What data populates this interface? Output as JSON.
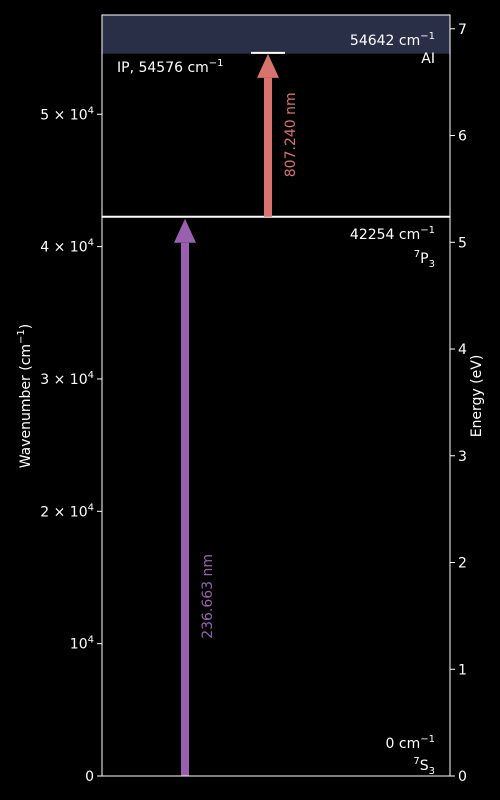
{
  "chart_data": {
    "type": "energy-level-diagram",
    "left_axis": {
      "label_main": "Wavenumber (cm",
      "label_sup": "−1",
      "label_end": ")",
      "range": [
        0,
        57500
      ],
      "ticks": [
        {
          "value": 0,
          "base": "0",
          "exp": ""
        },
        {
          "value": 10000,
          "base": "10",
          "exp": "4"
        },
        {
          "value": 20000,
          "base": "2 × 10",
          "exp": "4"
        },
        {
          "value": 30000,
          "base": "3 × 10",
          "exp": "4"
        },
        {
          "value": 40000,
          "base": "4 × 10",
          "exp": "4"
        },
        {
          "value": 50000,
          "base": "5 × 10",
          "exp": "4"
        }
      ]
    },
    "right_axis": {
      "label": "Energy (eV)",
      "ticks": [
        0,
        1,
        2,
        3,
        4,
        5,
        6,
        7
      ],
      "cm_per_ev": 8065.54
    },
    "ionization": {
      "label": "IP, 54576 cm",
      "label_sup": "−1",
      "value_cm": 54576,
      "band_color": "#2a2f48"
    },
    "levels": [
      {
        "value_cm": 0,
        "energy_text": "0 cm",
        "energy_sup": "−1",
        "term_pre": "7",
        "term_main": "S",
        "term_sub": "3"
      },
      {
        "value_cm": 42254,
        "energy_text": "42254 cm",
        "energy_sup": "−1",
        "term_pre": "7",
        "term_main": "P",
        "term_sub": "3"
      },
      {
        "value_cm": 54642,
        "energy_text": "54642 cm",
        "energy_sup": "−1",
        "term_pre": "",
        "term_main": "AI",
        "term_sub": ""
      }
    ],
    "transitions": [
      {
        "from_cm": 0,
        "to_cm": 42254,
        "label": "236.663 nm",
        "color": "#9b5fb0"
      },
      {
        "from_cm": 42254,
        "to_cm": 54642,
        "label": "807.240 nm",
        "color": "#d8736e"
      }
    ]
  }
}
